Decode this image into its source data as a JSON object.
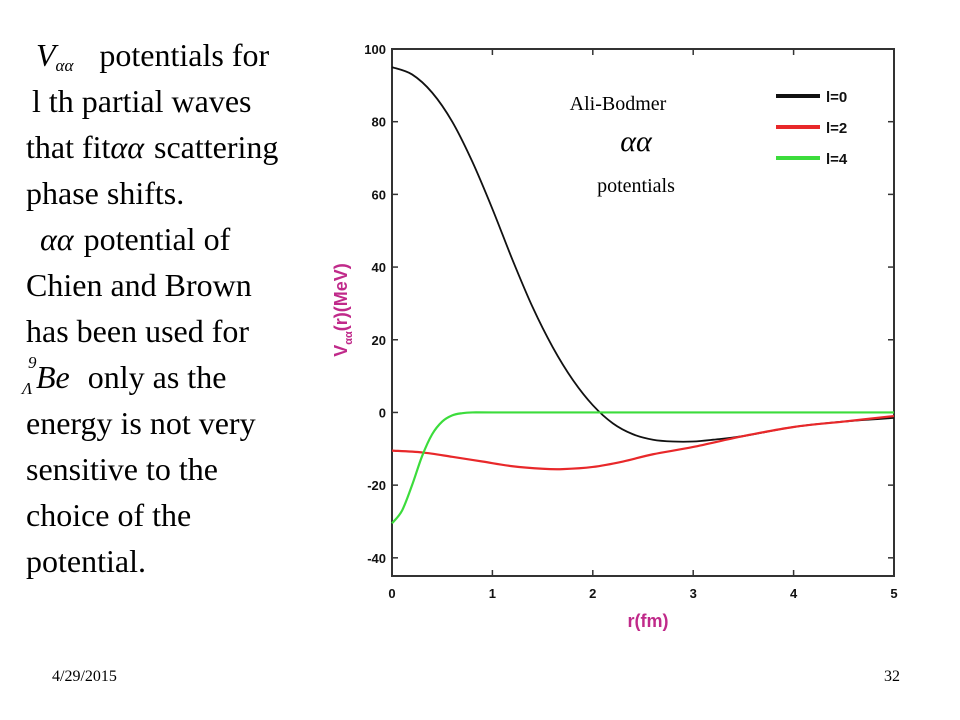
{
  "slide": {
    "text_lines": [
      {
        "math": "V",
        "math_sub": "αα",
        "text": "potentials  for"
      },
      {
        "text": "l th partial  waves"
      },
      {
        "pre": "that fit",
        "math": "αα",
        "text": "scattering"
      },
      {
        "text": "phase shifts."
      },
      {
        "math": "αα",
        "text": "potential  of"
      },
      {
        "text": "Chien and Brown"
      },
      {
        "text": "has been used for"
      },
      {
        "sup": "9",
        "pre_sub": "Λ",
        "math": "Be",
        "text": "only as the"
      },
      {
        "text": "energy is not very"
      },
      {
        "text": "sensitive  to the"
      },
      {
        "text": "choice of  the"
      },
      {
        "text": "potential."
      }
    ],
    "date": "4/29/2015",
    "page_number": "32"
  },
  "annotation": {
    "line1": "Ali-Bodmer",
    "math": "αα",
    "line3": "potentials"
  },
  "chart_data": {
    "type": "line",
    "xlabel": "r(fm)",
    "ylabel_parts": [
      "V",
      "αα",
      "(r)(MeV)"
    ],
    "xlim": [
      0,
      5
    ],
    "ylim": [
      -45,
      100
    ],
    "x_ticks": [
      "0",
      "1",
      "2",
      "3",
      "4",
      "5"
    ],
    "y_ticks": [
      "100",
      "80",
      "60",
      "40",
      "20",
      "0",
      "-20",
      "-40"
    ],
    "grid": false,
    "legend_position": "top-right",
    "series": [
      {
        "name": "l=0",
        "color": "#111111",
        "x": [
          0,
          0.2,
          0.4,
          0.6,
          0.8,
          1.0,
          1.2,
          1.4,
          1.6,
          1.8,
          2.0,
          2.2,
          2.4,
          2.6,
          2.8,
          3.0,
          3.2,
          3.5,
          4.0,
          4.5,
          5.0
        ],
        "y": [
          95,
          93,
          88,
          80,
          69,
          56,
          42,
          29,
          18,
          9,
          2,
          -3,
          -6,
          -7.5,
          -8,
          -8,
          -7.5,
          -6.5,
          -4,
          -2.5,
          -1.5
        ]
      },
      {
        "name": "l=2",
        "color": "#e8282a",
        "x": [
          0,
          0.3,
          0.6,
          0.9,
          1.2,
          1.5,
          1.7,
          2.0,
          2.3,
          2.6,
          3.0,
          3.5,
          4.0,
          4.5,
          5.0
        ],
        "y": [
          -10.5,
          -11,
          -12.2,
          -13.5,
          -14.8,
          -15.5,
          -15.6,
          -15,
          -13.5,
          -11.5,
          -9.5,
          -6.5,
          -4,
          -2.5,
          -1
        ]
      },
      {
        "name": "l=4",
        "color": "#3cdc3c",
        "x": [
          0,
          0.1,
          0.2,
          0.3,
          0.4,
          0.5,
          0.6,
          0.7,
          0.8,
          1.0,
          2.0,
          3.0,
          4.0,
          5.0
        ],
        "y": [
          -30.5,
          -27,
          -20,
          -12,
          -6,
          -2.5,
          -0.8,
          -0.2,
          0,
          0,
          0,
          0,
          0,
          0
        ]
      }
    ]
  }
}
